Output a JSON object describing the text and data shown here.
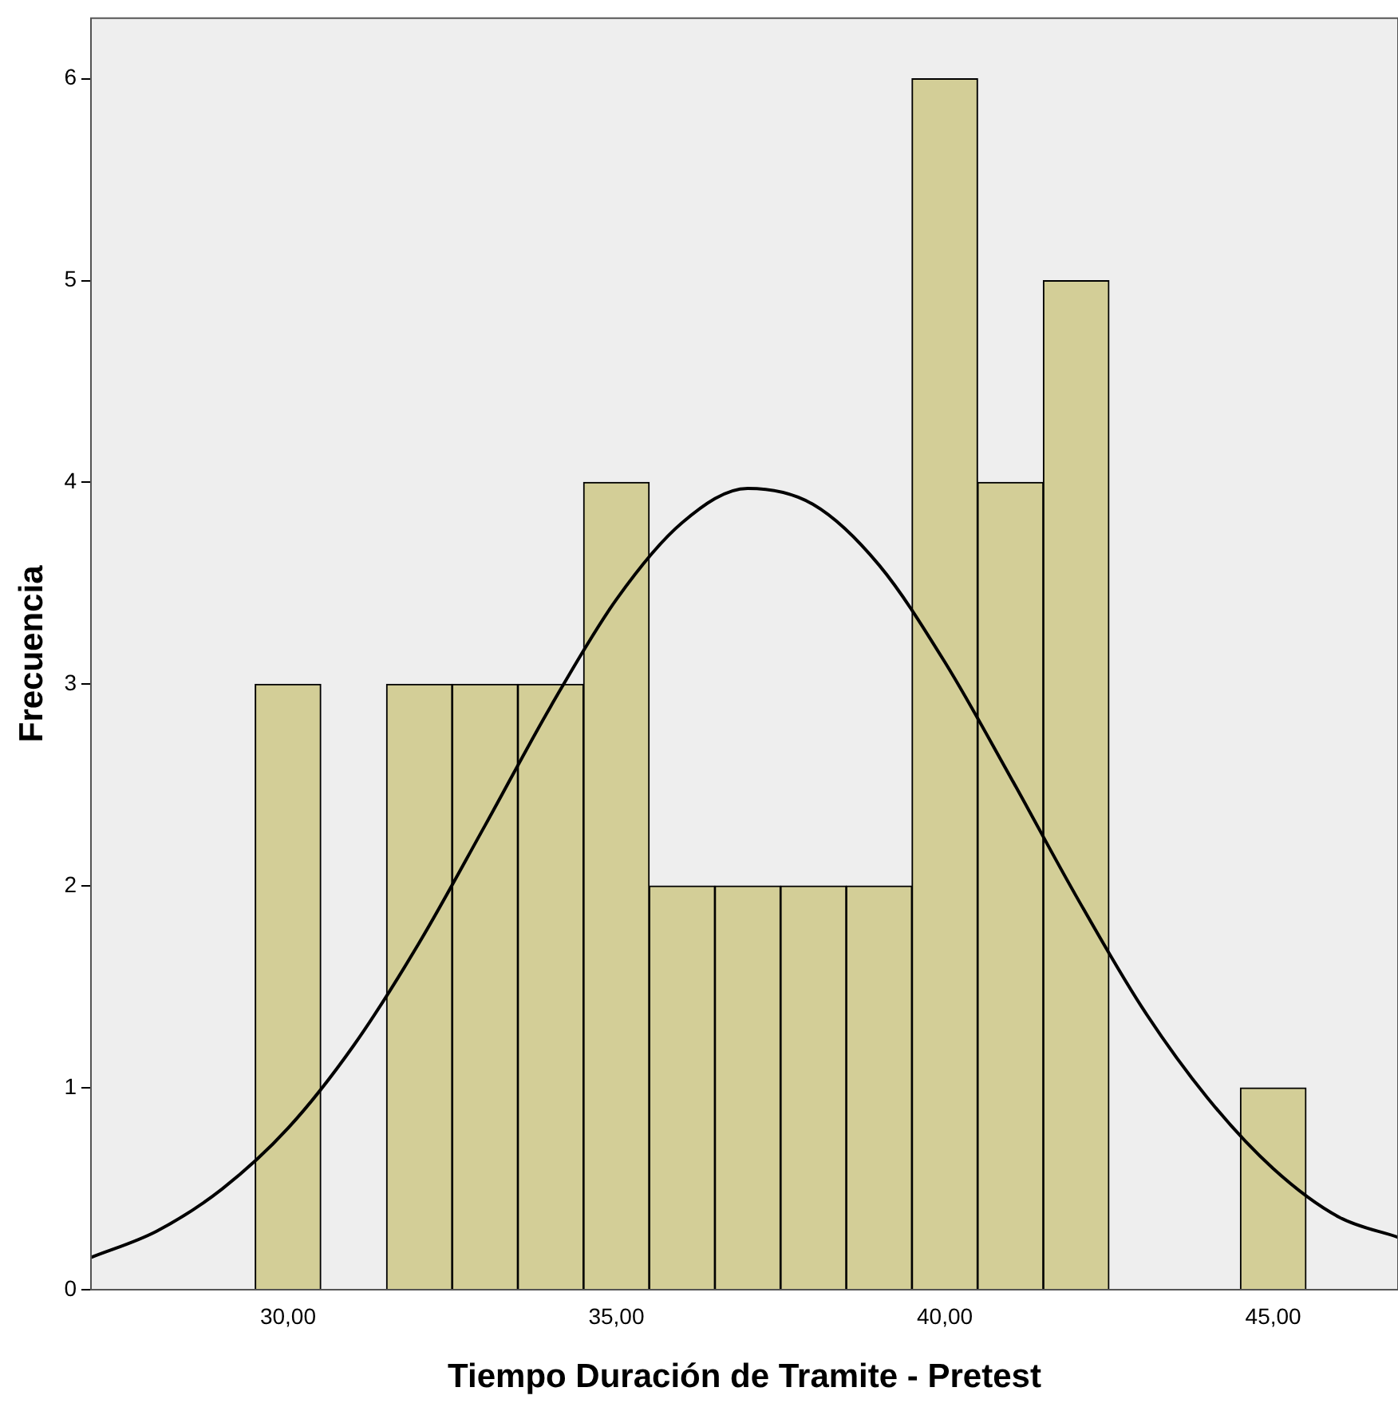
{
  "chart_data": {
    "type": "histogram",
    "xlabel": "Tiempo Duración de Tramite - Pretest",
    "ylabel": "Frecuencia",
    "bins": [
      29.5,
      30.5,
      31.5,
      32.5,
      33.5,
      34.5,
      35.5,
      36.5,
      37.5,
      38.5,
      39.5,
      40.5,
      41.5,
      42.5,
      43.5,
      44.5,
      45.5
    ],
    "values": [
      3,
      0,
      3,
      3,
      3,
      4,
      2,
      2,
      2,
      2,
      6,
      4,
      5,
      0,
      0,
      1
    ],
    "color": "#d3ce97",
    "series": [
      {
        "type": "line",
        "color": "#000000",
        "x": [
          27,
          28,
          29,
          30,
          31,
          32,
          33,
          34,
          35,
          36,
          37,
          38,
          39,
          40,
          41,
          42,
          43,
          44,
          45,
          46,
          46.9
        ],
        "values": [
          0.16,
          0.29,
          0.5,
          0.8,
          1.21,
          1.72,
          2.3,
          2.89,
          3.42,
          3.8,
          3.97,
          3.89,
          3.59,
          3.11,
          2.54,
          1.95,
          1.4,
          0.95,
          0.6,
          0.36,
          0.26
        ]
      }
    ],
    "xlim": [
      27,
      46.9
    ],
    "xticks": [
      {
        "value": 30,
        "label": "30,00"
      },
      {
        "value": 35,
        "label": "35,00"
      },
      {
        "value": 40,
        "label": "40,00"
      },
      {
        "value": 45,
        "label": "45,00"
      }
    ],
    "ylim": [
      0,
      6.3
    ],
    "yticks": [
      0,
      1,
      2,
      3,
      4,
      5,
      6
    ],
    "grid": false,
    "legend": false
  }
}
